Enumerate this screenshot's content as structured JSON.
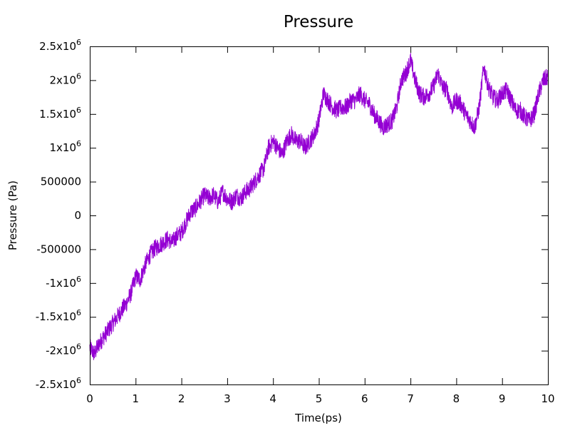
{
  "chart_data": {
    "type": "line",
    "title": "Pressure",
    "xlabel": "Time(ps)",
    "ylabel": "Pressure (Pa)",
    "xlim": [
      0,
      10
    ],
    "ylim": [
      -2500000,
      2500000
    ],
    "grid": false,
    "legend": "none",
    "x_ticks": [
      {
        "value": 0,
        "label": "0"
      },
      {
        "value": 1,
        "label": "1"
      },
      {
        "value": 2,
        "label": "2"
      },
      {
        "value": 3,
        "label": "3"
      },
      {
        "value": 4,
        "label": "4"
      },
      {
        "value": 5,
        "label": "5"
      },
      {
        "value": 6,
        "label": "6"
      },
      {
        "value": 7,
        "label": "7"
      },
      {
        "value": 8,
        "label": "8"
      },
      {
        "value": 9,
        "label": "9"
      },
      {
        "value": 10,
        "label": "10"
      }
    ],
    "y_ticks": [
      {
        "value": 2500000,
        "mantissa": "2.5x10",
        "exp": "6"
      },
      {
        "value": 2000000,
        "mantissa": "2x10",
        "exp": "6"
      },
      {
        "value": 1500000,
        "mantissa": "1.5x10",
        "exp": "6"
      },
      {
        "value": 1000000,
        "mantissa": "1x10",
        "exp": "6"
      },
      {
        "value": 500000,
        "mantissa": "500000",
        "exp": ""
      },
      {
        "value": 0,
        "mantissa": "0",
        "exp": ""
      },
      {
        "value": -500000,
        "mantissa": "-500000",
        "exp": ""
      },
      {
        "value": -1000000,
        "mantissa": "-1x10",
        "exp": "6"
      },
      {
        "value": -1500000,
        "mantissa": "-1.5x10",
        "exp": "6"
      },
      {
        "value": -2000000,
        "mantissa": "-2x10",
        "exp": "6"
      },
      {
        "value": -2500000,
        "mantissa": "-2.5x10",
        "exp": "6"
      }
    ],
    "series": [
      {
        "color": "#9400d3",
        "x": [
          0,
          0.1,
          0.2,
          0.3,
          0.4,
          0.5,
          0.6,
          0.7,
          0.8,
          0.9,
          1.0,
          1.1,
          1.2,
          1.3,
          1.4,
          1.5,
          1.6,
          1.7,
          1.8,
          1.9,
          2.0,
          2.1,
          2.2,
          2.3,
          2.4,
          2.5,
          2.6,
          2.7,
          2.8,
          2.9,
          3.0,
          3.1,
          3.2,
          3.3,
          3.4,
          3.5,
          3.6,
          3.7,
          3.8,
          3.9,
          4.0,
          4.1,
          4.2,
          4.3,
          4.4,
          4.5,
          4.6,
          4.7,
          4.8,
          4.9,
          5.0,
          5.1,
          5.2,
          5.3,
          5.4,
          5.5,
          5.6,
          5.7,
          5.8,
          5.9,
          6.0,
          6.1,
          6.2,
          6.3,
          6.4,
          6.5,
          6.6,
          6.7,
          6.8,
          6.9,
          7.0,
          7.1,
          7.2,
          7.3,
          7.4,
          7.5,
          7.6,
          7.7,
          7.8,
          7.9,
          8.0,
          8.1,
          8.2,
          8.3,
          8.4,
          8.5,
          8.6,
          8.7,
          8.8,
          8.9,
          9.0,
          9.1,
          9.2,
          9.3,
          9.4,
          9.5,
          9.6,
          9.7,
          9.8,
          9.9,
          10.0
        ],
        "y": [
          -1950000,
          -2050000,
          -1900000,
          -1800000,
          -1700000,
          -1600000,
          -1500000,
          -1400000,
          -1300000,
          -1150000,
          -900000,
          -950000,
          -750000,
          -600000,
          -500000,
          -450000,
          -400000,
          -350000,
          -400000,
          -300000,
          -250000,
          -100000,
          50000,
          100000,
          200000,
          300000,
          250000,
          300000,
          200000,
          350000,
          250000,
          200000,
          300000,
          250000,
          350000,
          400000,
          500000,
          600000,
          700000,
          1000000,
          1100000,
          1000000,
          900000,
          1100000,
          1200000,
          1100000,
          1100000,
          1000000,
          1100000,
          1200000,
          1400000,
          1800000,
          1700000,
          1600000,
          1550000,
          1600000,
          1600000,
          1700000,
          1700000,
          1800000,
          1700000,
          1650000,
          1500000,
          1400000,
          1300000,
          1350000,
          1400000,
          1600000,
          2000000,
          2100000,
          2300000,
          2000000,
          1800000,
          1750000,
          1800000,
          1900000,
          2100000,
          1900000,
          1850000,
          1600000,
          1700000,
          1650000,
          1500000,
          1400000,
          1300000,
          1600000,
          2200000,
          1900000,
          1750000,
          1700000,
          1800000,
          1850000,
          1700000,
          1550000,
          1550000,
          1450000,
          1400000,
          1500000,
          1800000,
          2000000,
          2050000
        ]
      }
    ]
  }
}
